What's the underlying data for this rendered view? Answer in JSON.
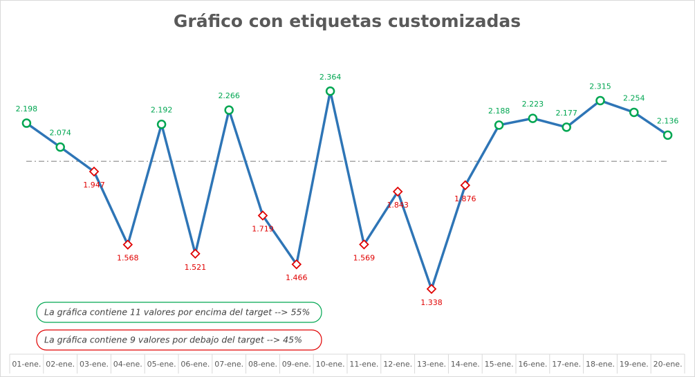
{
  "chart_data": {
    "type": "line",
    "title": "Gráfico con etiquetas customizadas",
    "categories": [
      "01-ene.",
      "02-ene.",
      "03-ene.",
      "04-ene.",
      "05-ene.",
      "06-ene.",
      "07-ene.",
      "08-ene.",
      "09-ene.",
      "10-ene.",
      "11-ene.",
      "12-ene.",
      "13-ene.",
      "14-ene.",
      "15-ene.",
      "16-ene.",
      "17-ene.",
      "18-ene.",
      "19-ene.",
      "20-ene."
    ],
    "series": [
      {
        "color": "#2e75b6",
        "values": [
          2.198,
          2.074,
          1.947,
          1.568,
          2.192,
          1.521,
          2.266,
          1.719,
          1.466,
          2.364,
          1.569,
          1.843,
          1.338,
          1.876,
          2.188,
          2.223,
          2.177,
          2.315,
          2.254,
          2.136
        ]
      }
    ],
    "target": 2,
    "target_color": "#a6a6a6",
    "above_color": "#00a651",
    "below_color": "#e00000",
    "ylim": [
      1,
      2.6
    ],
    "annotations": [
      "La gráfica contiene 11 valores por encima del target --> 55%",
      "La gráfica contiene 9 valores por debajo del target --> 45%"
    ]
  }
}
